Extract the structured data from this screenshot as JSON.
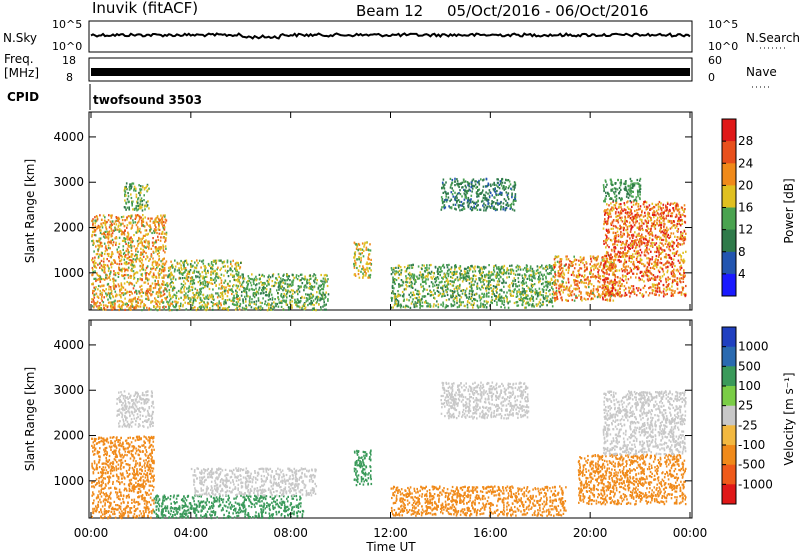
{
  "header": {
    "station": "Inuvik (fitACF)",
    "beam": "Beam 12",
    "date_range": "05/Oct/2016 - 06/Oct/2016",
    "cpid_label": "CPID",
    "cpid_value": "twofsound 3503"
  },
  "top_panels": {
    "nsky": {
      "label": "N.Sky",
      "left_ticks": [
        "10^5",
        "10^0"
      ],
      "right_label": "N.Search",
      "right_ticks": [
        "10^5",
        "10^0"
      ]
    },
    "freq": {
      "label_line1": "Freq.",
      "label_line2": "[MHz]",
      "left_ticks": [
        "18",
        "8"
      ],
      "right_label": "Nave",
      "right_ticks": [
        "60",
        "0"
      ]
    }
  },
  "colors": {
    "power": [
      "#1a1aff",
      "#2255b0",
      "#2f7a4a",
      "#4aa350",
      "#e0c020",
      "#f08a1a",
      "#e8501c",
      "#e01818"
    ],
    "velocity": [
      "#e01818",
      "#ef5a1a",
      "#f08a1a",
      "#f2b840",
      "#c8c8c8",
      "#7acd46",
      "#3a9a5a",
      "#2a6ab0",
      "#2040c0"
    ]
  },
  "chart_data": [
    {
      "type": "heatmap",
      "name": "Power",
      "ylabel": "Slant Range [km]",
      "yticks": [
        1000,
        2000,
        3000,
        4000
      ],
      "ylim": [
        180,
        4550
      ],
      "colorbar_label": "Power [dB]",
      "colorbar_ticks": [
        "28",
        "24",
        "20",
        "16",
        "12",
        "8",
        "4"
      ],
      "cbar_range": [
        0,
        32
      ],
      "regions": [
        {
          "t0": 0.0,
          "t1": 3.0,
          "r0": 200,
          "r1": 2300,
          "value": 20
        },
        {
          "t0": 1.3,
          "t1": 2.3,
          "r0": 2400,
          "r1": 3000,
          "value": 14
        },
        {
          "t0": 3.0,
          "t1": 6.0,
          "r0": 200,
          "r1": 1300,
          "value": 16
        },
        {
          "t0": 6.0,
          "t1": 9.5,
          "r0": 200,
          "r1": 1000,
          "value": 14
        },
        {
          "t0": 10.5,
          "t1": 11.2,
          "r0": 900,
          "r1": 1700,
          "value": 18
        },
        {
          "t0": 14.0,
          "t1": 17.0,
          "r0": 2400,
          "r1": 3100,
          "value": 10
        },
        {
          "t0": 12.0,
          "t1": 18.5,
          "r0": 250,
          "r1": 1200,
          "value": 14
        },
        {
          "t0": 18.5,
          "t1": 21.0,
          "r0": 400,
          "r1": 1400,
          "value": 22
        },
        {
          "t0": 20.5,
          "t1": 23.8,
          "r0": 500,
          "r1": 2600,
          "value": 24
        },
        {
          "t0": 20.5,
          "t1": 22.0,
          "r0": 2600,
          "r1": 3100,
          "value": 12
        }
      ]
    },
    {
      "type": "heatmap",
      "name": "Velocity",
      "ylabel": "Slant Range [km]",
      "yticks": [
        1000,
        2000,
        3000,
        4000
      ],
      "ylim": [
        180,
        4550
      ],
      "colorbar_label": "Velocity [m s⁻¹]",
      "colorbar_ticks": [
        "1000",
        "500",
        "100",
        "25",
        "-25",
        "-100",
        "-500",
        "-1000"
      ],
      "regions": [
        {
          "t0": 0.0,
          "t1": 2.5,
          "r0": 200,
          "r1": 2000,
          "value": -300
        },
        {
          "t0": 1.0,
          "t1": 2.5,
          "r0": 2200,
          "r1": 3000,
          "value": 0
        },
        {
          "t0": 2.5,
          "t1": 8.5,
          "r0": 200,
          "r1": 700,
          "value": 300
        },
        {
          "t0": 4.0,
          "t1": 9.0,
          "r0": 700,
          "r1": 1300,
          "value": 0
        },
        {
          "t0": 10.5,
          "t1": 11.2,
          "r0": 900,
          "r1": 1700,
          "value": 300
        },
        {
          "t0": 14.0,
          "t1": 17.5,
          "r0": 2400,
          "r1": 3200,
          "value": 0
        },
        {
          "t0": 12.0,
          "t1": 19.0,
          "r0": 250,
          "r1": 900,
          "value": -150
        },
        {
          "t0": 19.5,
          "t1": 23.8,
          "r0": 500,
          "r1": 1600,
          "value": -300
        },
        {
          "t0": 20.5,
          "t1": 23.8,
          "r0": 1600,
          "r1": 3000,
          "value": 0
        }
      ]
    }
  ],
  "xaxis": {
    "ticks": [
      "00:00",
      "04:00",
      "08:00",
      "12:00",
      "16:00",
      "20:00",
      "00:00"
    ],
    "label": "Time UT",
    "range_hours": [
      0,
      24
    ]
  }
}
